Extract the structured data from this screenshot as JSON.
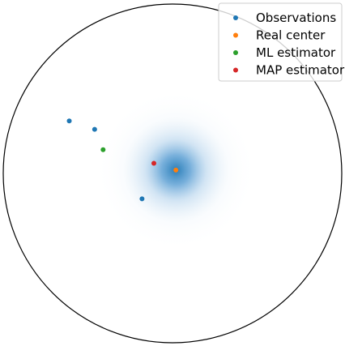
{
  "chart_data": {
    "type": "scatter",
    "coordinate_system": "poincare_disk",
    "disk_radius": 1.0,
    "axes_visible": false,
    "grid": false,
    "legend_position": "top-right",
    "prior_density": {
      "description_visible": false,
      "center": [
        0.02,
        0.02
      ],
      "color": "#1f77b4"
    },
    "series": [
      {
        "name": "Observations",
        "color": "#1f77b4",
        "points": [
          [
            -0.61,
            0.31
          ],
          [
            -0.46,
            0.26
          ],
          [
            -0.18,
            -0.15
          ]
        ]
      },
      {
        "name": "Real center",
        "color": "#ff7f0e",
        "points": [
          [
            0.02,
            0.02
          ]
        ]
      },
      {
        "name": "ML estimator",
        "color": "#2ca02c",
        "points": [
          [
            -0.41,
            0.14
          ]
        ]
      },
      {
        "name": "MAP estimator",
        "color": "#d62728",
        "points": [
          [
            -0.11,
            0.06
          ]
        ]
      }
    ]
  }
}
